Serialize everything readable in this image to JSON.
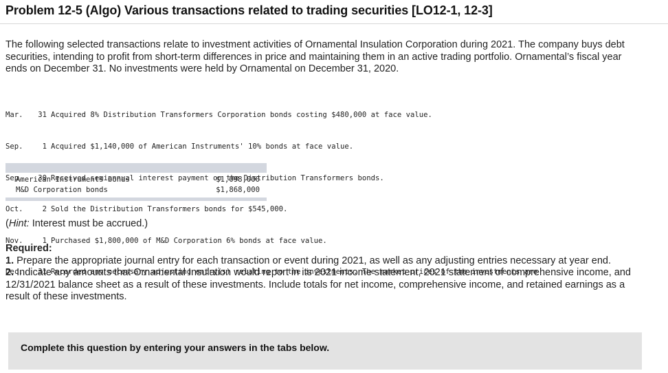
{
  "title": "Problem 12-5 (Algo) Various transactions related to trading securities [LO12-1, 12-3]",
  "intro": "The following selected transactions relate to investment activities of Ornamental Insulation Corporation during 2021. The company buys debt securities, intending to profit from short-term differences in price and maintaining them in an active trading portfolio. Ornamental’s fiscal year ends on December 31. No investments were held by Ornamental on December 31, 2020.",
  "transactions": [
    {
      "month": "Mar.",
      "day": "31",
      "desc": "Acquired 8% Distribution Transformers Corporation bonds costing $480,000 at face value."
    },
    {
      "month": "Sep.",
      "day": "1",
      "desc": "Acquired $1,140,000 of American Instruments' 10% bonds at face value."
    },
    {
      "month": "Sep.",
      "day": "30",
      "desc": "Received semiannual interest payment on the Distribution Transformers bonds."
    },
    {
      "month": "Oct.",
      "day": "2",
      "desc": "Sold the Distribution Transformers bonds for $545,000."
    },
    {
      "month": "Nov.",
      "day": "1",
      "desc": "Purchased $1,800,000 of M&D Corporation 6% bonds at face value."
    },
    {
      "month": "Dec.",
      "day": "31",
      "desc": "Recorded any necessary adjusting entry(s) relating to the investments. The market prices of the investments are"
    }
  ],
  "market_prices": [
    {
      "name": "American Instruments bonds",
      "value": "$1,098,000"
    },
    {
      "name": "M&D Corporation bonds",
      "value": "$1,868,000"
    }
  ],
  "hint": {
    "label": "Hint:",
    "text": " Interest must be accrued.)"
  },
  "required": {
    "heading": "Required:",
    "items": [
      {
        "num": "1.",
        "text": " Prepare the appropriate journal entry for each transaction or event during 2021, as well as any adjusting entries necessary at year end."
      },
      {
        "num": "2.",
        "text": " Indicate any amounts that Ornamental Insulation would report in its 2021 income statement, 2021 statement of comprehensive income, and 12/31/2021 balance sheet as a result of these investments. Include totals for net income, comprehensive income, and retained earnings as a result of these investments."
      }
    ]
  },
  "complete_note": "Complete this question by entering your answers in the tabs below."
}
